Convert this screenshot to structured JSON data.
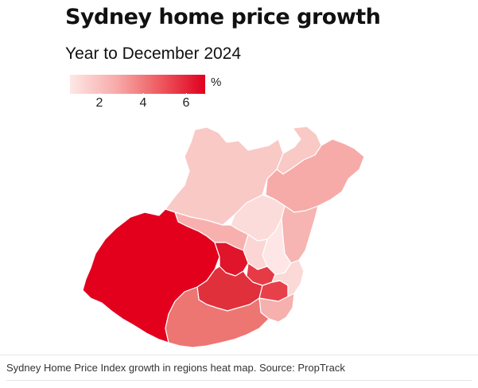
{
  "title": "Sydney home price growth",
  "subtitle": "Year to December 2024",
  "legend": {
    "unit": "%",
    "ticks": [
      "2",
      "4",
      "6"
    ],
    "colors": [
      "#fde8e6",
      "#f7a9a8",
      "#ee5e62",
      "#e0001f"
    ]
  },
  "map": {
    "regions": [
      {
        "id": "blue-mountains",
        "color": "#f9c9c6"
      },
      {
        "id": "hawkesbury",
        "color": "#f9c9c6"
      },
      {
        "id": "central-coast",
        "color": "#f6aba8"
      },
      {
        "id": "northern-beaches",
        "color": "#f6b5b2"
      },
      {
        "id": "baulkham-hills",
        "color": "#fcdcda"
      },
      {
        "id": "north-sydney",
        "color": "#fde6e5"
      },
      {
        "id": "ryde",
        "color": "#fbd6d4"
      },
      {
        "id": "blacktown",
        "color": "#f7b0ad"
      },
      {
        "id": "south-west",
        "color": "#e2001d"
      },
      {
        "id": "parramatta",
        "color": "#e0142b"
      },
      {
        "id": "inner-west",
        "color": "#e63a45"
      },
      {
        "id": "outer-south-west",
        "color": "#e0303c"
      },
      {
        "id": "eastern-suburbs",
        "color": "#fbd9d7"
      },
      {
        "id": "sutherland",
        "color": "#f6b0ad"
      },
      {
        "id": "campbelltown",
        "color": "#ed7572"
      },
      {
        "id": "city-inner-south",
        "color": "#e8404b"
      }
    ]
  },
  "caption": "Sydney Home Price Index growth in regions heat map. Source: PropTrack"
}
